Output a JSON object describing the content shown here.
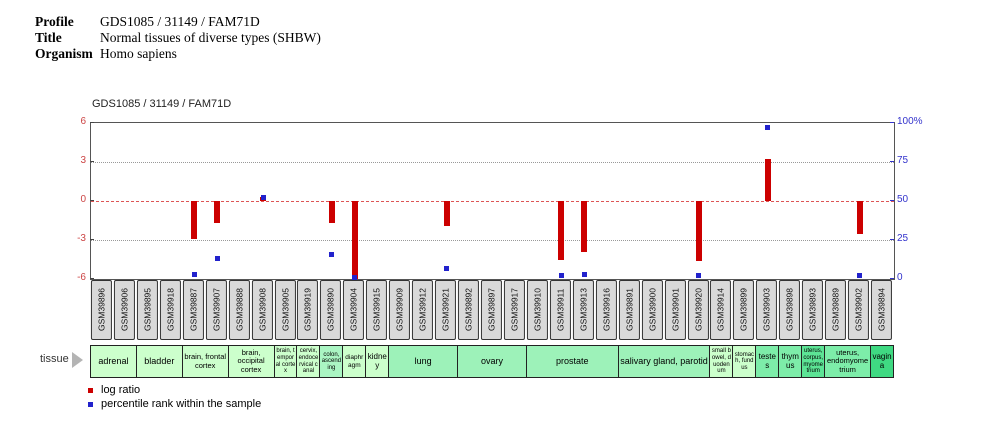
{
  "header": {
    "profile_label": "Profile",
    "profile_value": "GDS1085 / 31149 / FAM71D",
    "title_label": "Title",
    "title_value": "Normal tissues of diverse types (SHBW)",
    "organism_label": "Organism",
    "organism_value": "Homo sapiens"
  },
  "tissue_row_label": "tissue",
  "legend": {
    "log_ratio_label": "log ratio",
    "percentile_label": "percentile rank within the sample"
  },
  "colors": {
    "log_ratio": "#cc0000",
    "percentile": "#2222cc",
    "axis_left": "#cc4444",
    "axis_right": "#3333cc",
    "zero_line": "#dd5555",
    "grid_dotted": "#999999",
    "gsm_box_bg": "#d9d9d9"
  },
  "chart_data": {
    "type": "bar",
    "title": "GDS1085 / 31149 / FAM71D",
    "ylabel_left": "log ratio",
    "ylabel_right": "percentile rank within the sample",
    "ylim_left": [
      -6,
      6
    ],
    "ylim_right": [
      0,
      100
    ],
    "left_ticks": [
      6,
      3,
      0,
      -3,
      -6
    ],
    "right_ticks": [
      "100%",
      "75",
      "50",
      "25",
      "0"
    ],
    "grid": true,
    "legend_position": "bottom-left",
    "samples": [
      "GSM39896",
      "GSM39906",
      "GSM39895",
      "GSM39918",
      "GSM39887",
      "GSM39907",
      "GSM39888",
      "GSM39908",
      "GSM39905",
      "GSM39919",
      "GSM39890",
      "GSM39904",
      "GSM39915",
      "GSM39909",
      "GSM39912",
      "GSM39921",
      "GSM39892",
      "GSM39897",
      "GSM39917",
      "GSM39910",
      "GSM39911",
      "GSM39913",
      "GSM39916",
      "GSM39891",
      "GSM39900",
      "GSM39901",
      "GSM39920",
      "GSM39914",
      "GSM39899",
      "GSM39903",
      "GSM39898",
      "GSM39893",
      "GSM39889",
      "GSM39902",
      "GSM39894"
    ],
    "series": [
      {
        "name": "log ratio",
        "mark": "bar",
        "color": "#cc0000",
        "values": [
          null,
          null,
          null,
          null,
          -2.9,
          -1.7,
          null,
          0.3,
          null,
          null,
          -1.7,
          -6.0,
          null,
          null,
          null,
          -1.9,
          null,
          null,
          null,
          null,
          -4.5,
          -3.9,
          null,
          null,
          null,
          null,
          -4.6,
          null,
          null,
          3.2,
          null,
          null,
          null,
          -2.5,
          null
        ]
      },
      {
        "name": "percentile rank within the sample",
        "mark": "point",
        "color": "#2222cc",
        "values": [
          null,
          null,
          null,
          null,
          3,
          13,
          null,
          52,
          null,
          null,
          16,
          1,
          null,
          null,
          null,
          7,
          null,
          null,
          null,
          null,
          2,
          3,
          null,
          null,
          null,
          null,
          2,
          null,
          null,
          97,
          null,
          null,
          null,
          2,
          null
        ]
      }
    ],
    "tissue_groups": [
      {
        "label": "adrenal",
        "span": 2,
        "color": "#ccffcc"
      },
      {
        "label": "bladder",
        "span": 2,
        "color": "#ccffcc"
      },
      {
        "label": "brain, frontal cortex",
        "span": 2,
        "color": "#ccffcc"
      },
      {
        "label": "brain, occipital cortex",
        "span": 2,
        "color": "#ccffcc"
      },
      {
        "label": "brain, temporal cortex",
        "span": 1,
        "color": "#ccffcc"
      },
      {
        "label": "cervix, endocervical canal",
        "span": 1,
        "color": "#ccffcc"
      },
      {
        "label": "colon, ascending",
        "span": 1,
        "color": "#aaf5c3"
      },
      {
        "label": "diaphragm",
        "span": 1,
        "color": "#ccffcc"
      },
      {
        "label": "kidney",
        "span": 1,
        "color": "#ccffcc"
      },
      {
        "label": "lung",
        "span": 3,
        "color": "#9df2b9"
      },
      {
        "label": "ovary",
        "span": 3,
        "color": "#9df2b9"
      },
      {
        "label": "prostate",
        "span": 4,
        "color": "#9df2b9"
      },
      {
        "label": "salivary gland, parotid",
        "span": 4,
        "color": "#9df2b9"
      },
      {
        "label": "small bowel, duodenum",
        "span": 1,
        "color": "#ccffcc"
      },
      {
        "label": "stomach, fundus",
        "span": 1,
        "color": "#ccffcc"
      },
      {
        "label": "testes",
        "span": 1,
        "color": "#7deda9"
      },
      {
        "label": "thymus",
        "span": 1,
        "color": "#7deda9"
      },
      {
        "label": "uterus, corpus, myometrium",
        "span": 1,
        "color": "#5ce495"
      },
      {
        "label": "uterus, endomyometrium",
        "span": 2,
        "color": "#7deda9"
      },
      {
        "label": "vagina",
        "span": 1,
        "color": "#3fd982"
      }
    ]
  }
}
